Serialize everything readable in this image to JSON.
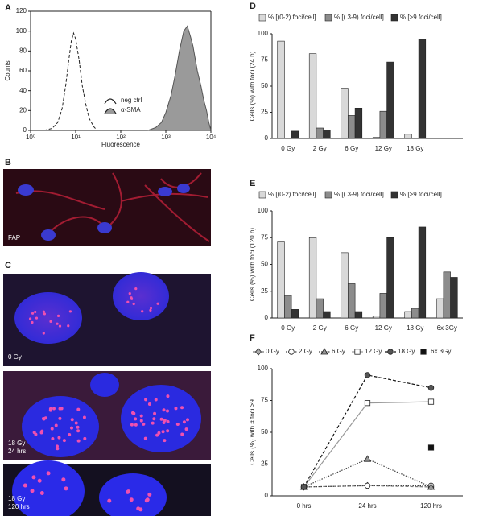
{
  "chart_data": [
    {
      "panel": "A",
      "type": "histogram_line",
      "xlabel": "Fluorescence",
      "ylabel": "Counts",
      "xscale": "log",
      "xlim": [
        1,
        10000
      ],
      "xticks": [
        {
          "value": 1,
          "label": "10⁰"
        },
        {
          "value": 10,
          "label": "10¹"
        },
        {
          "value": 100,
          "label": "10²"
        },
        {
          "value": 1000,
          "label": "10³"
        },
        {
          "value": 10000,
          "label": "10⁴"
        }
      ],
      "ylim": [
        0,
        120
      ],
      "yticks": [
        0,
        20,
        40,
        60,
        80,
        100,
        120
      ],
      "series": [
        {
          "name": "neg ctrl",
          "color": "#222222",
          "dash": "dashed",
          "fill": "none",
          "x": [
            2,
            3,
            4,
            5,
            6,
            7,
            8,
            9,
            10,
            12,
            14,
            17,
            20,
            25,
            30
          ],
          "values": [
            0,
            2,
            8,
            22,
            45,
            70,
            90,
            98,
            92,
            70,
            45,
            25,
            12,
            4,
            0
          ]
        },
        {
          "name": "α-SMA",
          "color": "#555555",
          "dash": "solid",
          "fill": "#9a9a9a",
          "x": [
            400,
            600,
            800,
            1000,
            1300,
            1600,
            2000,
            2500,
            3000,
            3500,
            4000,
            5000,
            6000,
            7000,
            8000,
            9000,
            10000
          ],
          "values": [
            0,
            3,
            8,
            18,
            35,
            55,
            80,
            100,
            105,
            95,
            85,
            60,
            45,
            30,
            20,
            8,
            0
          ]
        }
      ]
    },
    {
      "panel": "D",
      "type": "bar",
      "ylabel": "Cells (%) with foci (24 h)",
      "categories": [
        "0 Gy",
        "2 Gy",
        "6 Gy",
        "12 Gy",
        "18 Gy",
        null
      ],
      "ylim": [
        0,
        100
      ],
      "yticks": [
        0,
        25,
        50,
        75,
        100
      ],
      "series": [
        {
          "name": "% [(0-2) foci/cell]",
          "color": "#d9d9d9",
          "values": [
            93,
            81,
            48,
            1,
            4,
            null
          ]
        },
        {
          "name": "% [( 3-9) foci/cell]",
          "color": "#8c8c8c",
          "values": [
            0,
            10,
            22,
            26,
            0,
            null
          ]
        },
        {
          "name": "% [>9 foci/cell]",
          "color": "#333333",
          "values": [
            7,
            8,
            29,
            73,
            95,
            null
          ]
        }
      ]
    },
    {
      "panel": "E",
      "type": "bar",
      "ylabel": "Cells (%) with foci (120 h)",
      "categories": [
        "0 Gy",
        "2 Gy",
        "6 Gy",
        "12 Gy",
        "18 Gy",
        "6x 3Gy"
      ],
      "ylim": [
        0,
        100
      ],
      "yticks": [
        0,
        25,
        50,
        75,
        100
      ],
      "series": [
        {
          "name": "% [(0-2) foci/cell]",
          "color": "#d9d9d9",
          "values": [
            71,
            75,
            61,
            2,
            6,
            18
          ]
        },
        {
          "name": "% [( 3-9) foci/cell]",
          "color": "#8c8c8c",
          "values": [
            21,
            18,
            32,
            23,
            9,
            43
          ]
        },
        {
          "name": "% [>9 foci/cell]",
          "color": "#333333",
          "values": [
            8,
            6,
            6,
            75,
            85,
            38
          ]
        }
      ]
    },
    {
      "panel": "F",
      "type": "line",
      "ylabel": "Cells (%) with # foci >9",
      "categories": [
        "0 hrs",
        "24 hrs",
        "120 hrs"
      ],
      "ylim": [
        0,
        100
      ],
      "yticks": [
        0,
        25,
        50,
        75,
        100
      ],
      "series": [
        {
          "name": "0 Gy",
          "color": "#777777",
          "dash": "dashed",
          "marker": "diamond",
          "marker_fill": "#aaaaaa",
          "values": [
            7,
            8,
            7
          ]
        },
        {
          "name": "2 Gy",
          "color": "#444444",
          "dash": "dotted",
          "marker": "circle",
          "marker_fill": "#ffffff",
          "values": [
            7,
            8,
            8
          ]
        },
        {
          "name": "6 Gy",
          "color": "#444444",
          "dash": "dotted",
          "marker": "triangle",
          "marker_fill": "#999999",
          "values": [
            7,
            29,
            7
          ]
        },
        {
          "name": "12 Gy",
          "color": "#999999",
          "dash": "solid",
          "marker": "square",
          "marker_fill": "#ffffff",
          "values": [
            7,
            73,
            74
          ]
        },
        {
          "name": "18 Gy",
          "color": "#111111",
          "dash": "dashed",
          "marker": "circle",
          "marker_fill": "#555555",
          "values": [
            7,
            95,
            85
          ]
        },
        {
          "name": "6x 3Gy",
          "color": "#111111",
          "dash": "none",
          "marker": "square",
          "marker_fill": "#111111",
          "values": [
            null,
            null,
            38
          ]
        }
      ]
    }
  ],
  "images": [
    {
      "panel": "B",
      "caption": "FAP"
    },
    {
      "panel": "C",
      "caption": "0 Gy"
    },
    {
      "caption": [
        "18 Gy",
        "24 hrs"
      ]
    },
    {
      "caption": [
        "18 Gy",
        "120 hrs"
      ]
    }
  ]
}
